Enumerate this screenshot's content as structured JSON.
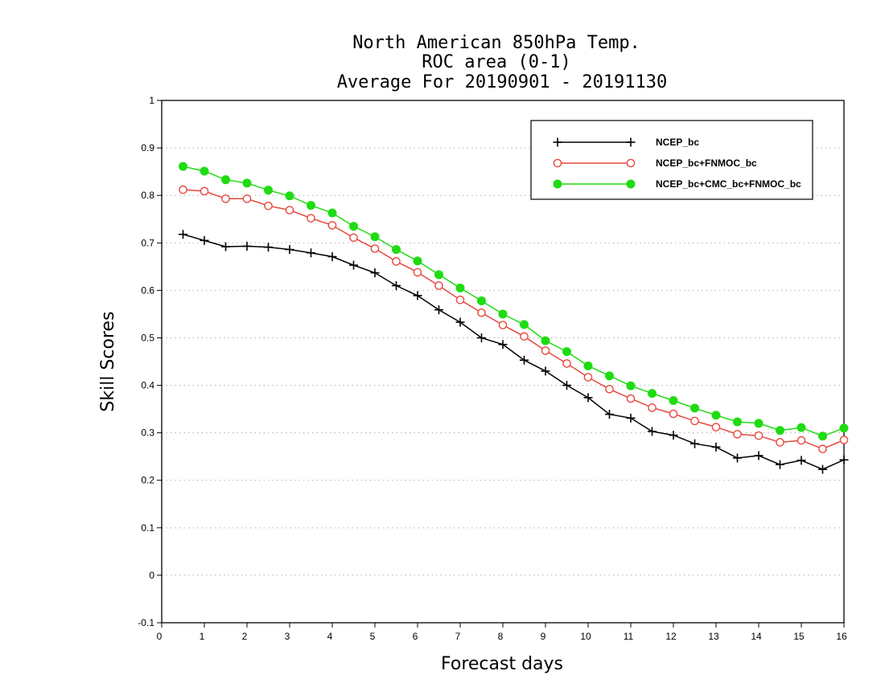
{
  "chart_data": {
    "type": "line",
    "title": [
      "North American 850hPa Temp.",
      "ROC area (0-1)",
      "Average For 20190901 - 20191130"
    ],
    "xlabel": "Forecast days",
    "ylabel": "Skill Scores",
    "xlim": [
      0,
      16
    ],
    "ylim": [
      -0.1,
      1
    ],
    "xticks": [
      0,
      1,
      2,
      3,
      4,
      5,
      6,
      7,
      8,
      9,
      10,
      11,
      12,
      13,
      14,
      15,
      16
    ],
    "yticks": [
      -0.1,
      0,
      0.1,
      0.2,
      0.3,
      0.4,
      0.5,
      0.6,
      0.7,
      0.8,
      0.9,
      1
    ],
    "ytick_labels": [
      "-0.1",
      "0",
      "0.1",
      "0.2",
      "0.3",
      "0.4",
      "0.5",
      "0.6",
      "0.7",
      "0.8",
      "0.9",
      "1"
    ],
    "grid": "horizontal-dotted",
    "legend_position": "top-right",
    "x": [
      0.5,
      1,
      1.5,
      2,
      2.5,
      3,
      3.5,
      4,
      4.5,
      5,
      5.5,
      6,
      6.5,
      7,
      7.5,
      8,
      8.5,
      9,
      9.5,
      10,
      10.5,
      11,
      11.5,
      12,
      12.5,
      13,
      13.5,
      14,
      14.5,
      15,
      15.5,
      16
    ],
    "series": [
      {
        "name": "NCEP_bc",
        "color": "#000000",
        "marker": "plus",
        "values": [
          0.718,
          0.705,
          0.692,
          0.693,
          0.691,
          0.686,
          0.679,
          0.671,
          0.653,
          0.637,
          0.61,
          0.589,
          0.559,
          0.533,
          0.5,
          0.486,
          0.453,
          0.43,
          0.4,
          0.374,
          0.339,
          0.331,
          0.303,
          0.295,
          0.277,
          0.27,
          0.247,
          0.252,
          0.233,
          0.242,
          0.223,
          0.243
        ]
      },
      {
        "name": "NCEP_bc+FNMOC_bc",
        "color": "#e8473f",
        "marker": "open-circle",
        "values": [
          0.812,
          0.809,
          0.793,
          0.793,
          0.778,
          0.769,
          0.752,
          0.737,
          0.711,
          0.688,
          0.661,
          0.638,
          0.61,
          0.58,
          0.553,
          0.527,
          0.503,
          0.473,
          0.446,
          0.417,
          0.392,
          0.372,
          0.353,
          0.34,
          0.325,
          0.312,
          0.297,
          0.294,
          0.28,
          0.284,
          0.266,
          0.285
        ]
      },
      {
        "name": "NCEP_bc+CMC_bc+FNMOC_bc",
        "color": "#1fdc12",
        "marker": "filled-circle",
        "values": [
          0.861,
          0.851,
          0.833,
          0.826,
          0.811,
          0.799,
          0.779,
          0.763,
          0.735,
          0.713,
          0.686,
          0.662,
          0.633,
          0.605,
          0.578,
          0.55,
          0.528,
          0.494,
          0.471,
          0.441,
          0.42,
          0.399,
          0.383,
          0.368,
          0.352,
          0.337,
          0.323,
          0.32,
          0.305,
          0.311,
          0.293,
          0.31
        ]
      }
    ]
  }
}
